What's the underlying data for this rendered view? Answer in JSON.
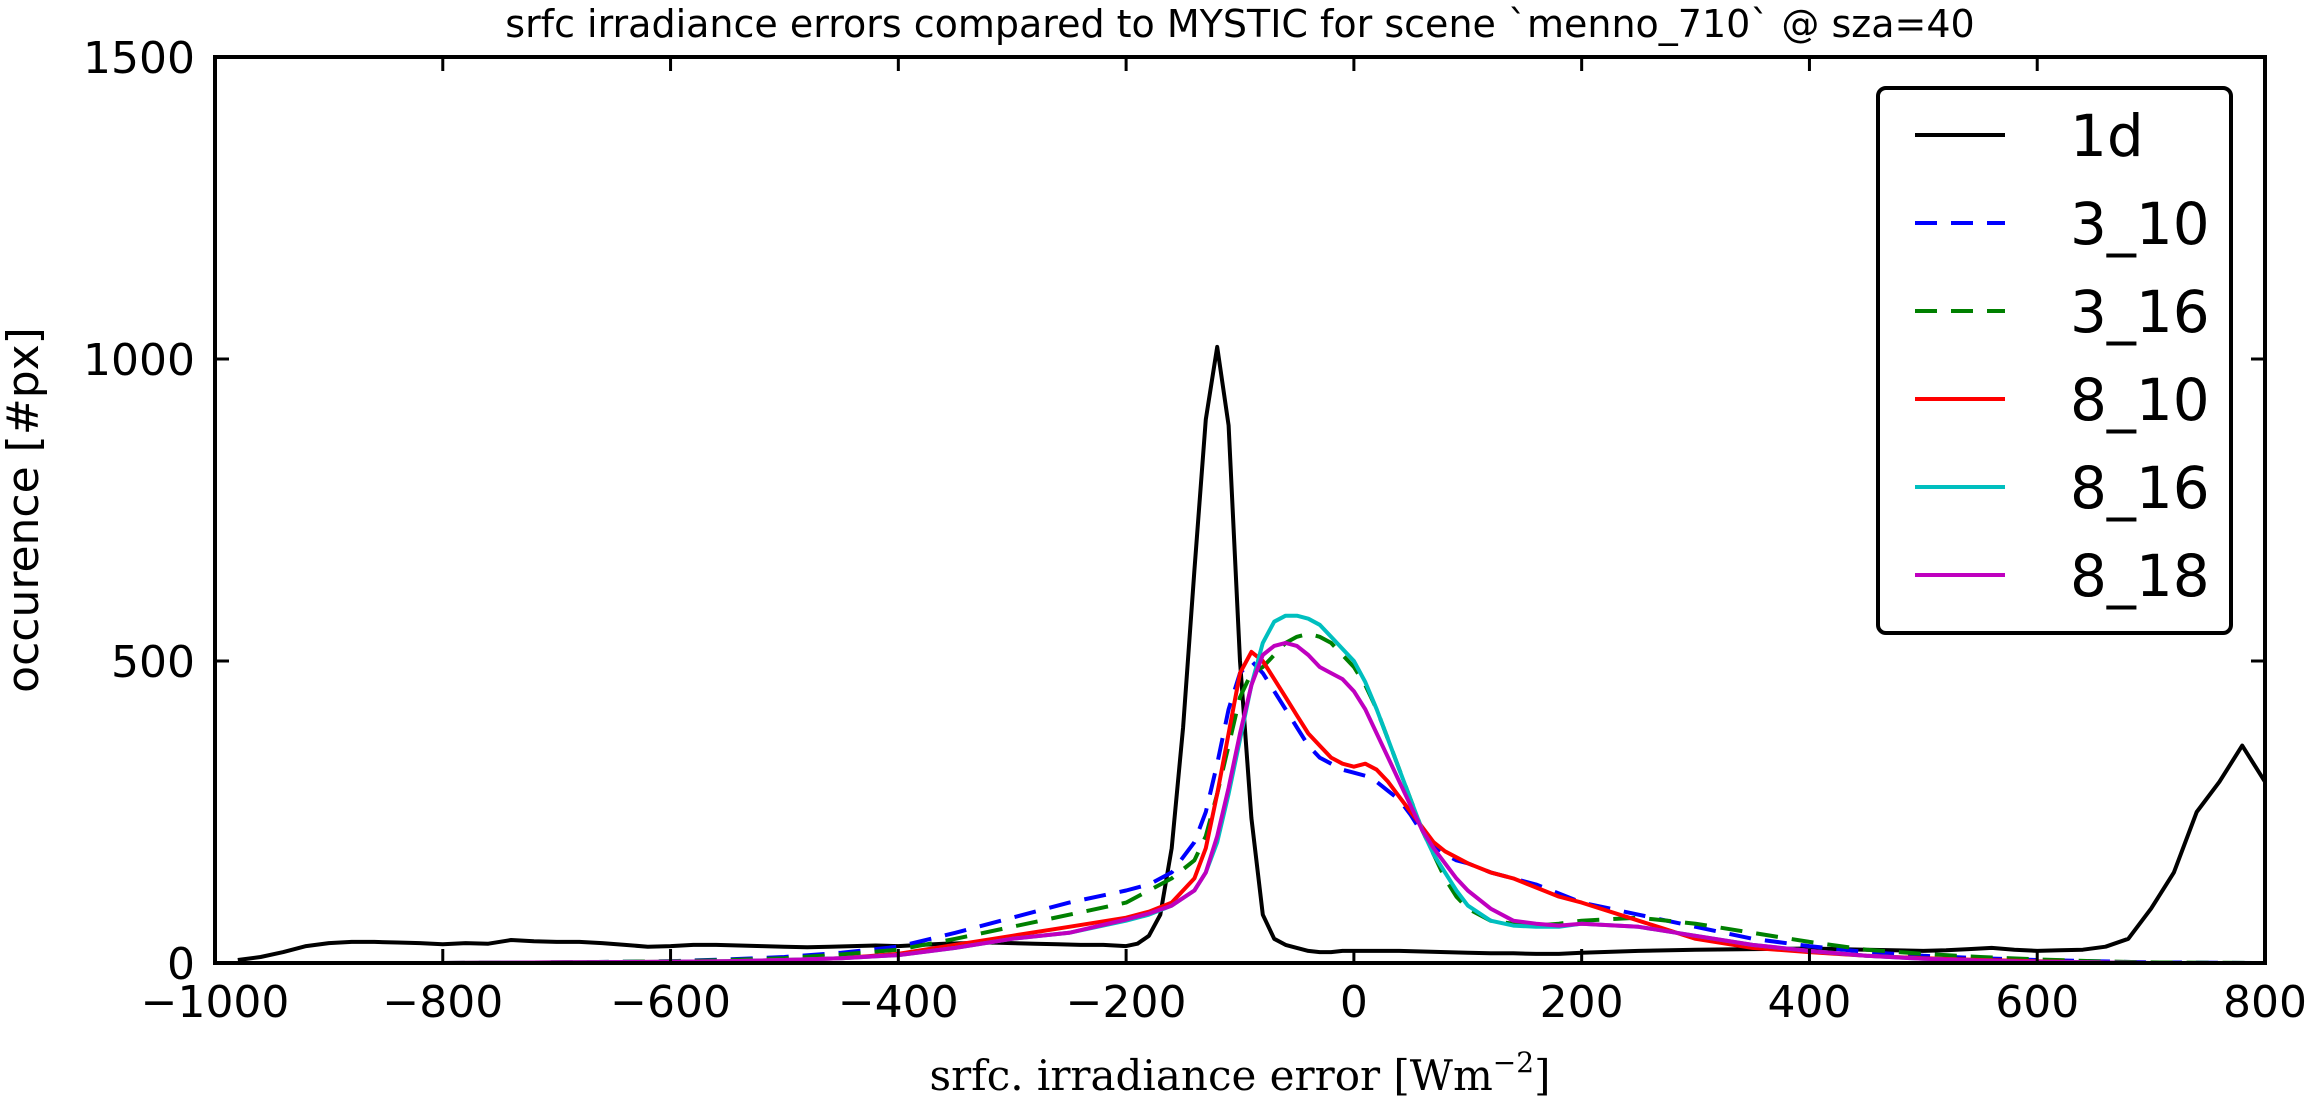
{
  "chart_data": {
    "type": "line",
    "title": "srfc irradiance errors compared to MYSTIC for scene `menno_710` @ sza=40",
    "xlabel": "srfc. irradiance error [Wm",
    "xlabel_exp": "−2",
    "xlabel_close": "]",
    "ylabel": "occurence [#px]",
    "xlim": [
      -1000,
      800
    ],
    "ylim": [
      0,
      1500
    ],
    "x_ticks": [
      -1000,
      -800,
      -600,
      -400,
      -200,
      0,
      200,
      400,
      600,
      800
    ],
    "x_tick_labels": [
      "−1000",
      "−800",
      "−600",
      "−400",
      "−200",
      "0",
      "200",
      "400",
      "600",
      "800"
    ],
    "y_ticks": [
      0,
      500,
      1000,
      1500
    ],
    "y_tick_labels": [
      "0",
      "500",
      "1000",
      "1500"
    ],
    "grid": false,
    "legend_position": "top-right",
    "series": [
      {
        "name": "1d",
        "color": "#000000",
        "dash": "solid",
        "x": [
          -980,
          -960,
          -940,
          -920,
          -900,
          -880,
          -860,
          -840,
          -820,
          -800,
          -780,
          -760,
          -740,
          -720,
          -700,
          -680,
          -660,
          -640,
          -620,
          -600,
          -580,
          -560,
          -540,
          -520,
          -500,
          -480,
          -460,
          -440,
          -420,
          -400,
          -380,
          -360,
          -340,
          -320,
          -300,
          -280,
          -260,
          -240,
          -220,
          -200,
          -190,
          -180,
          -170,
          -160,
          -150,
          -140,
          -130,
          -120,
          -110,
          -100,
          -90,
          -80,
          -70,
          -60,
          -50,
          -40,
          -30,
          -20,
          -10,
          0,
          20,
          40,
          60,
          80,
          100,
          120,
          140,
          160,
          180,
          200,
          250,
          300,
          350,
          400,
          450,
          500,
          520,
          540,
          560,
          580,
          600,
          620,
          640,
          660,
          680,
          700,
          720,
          740,
          760,
          780,
          800
        ],
        "y": [
          5,
          10,
          18,
          28,
          33,
          35,
          35,
          34,
          33,
          31,
          33,
          32,
          38,
          36,
          35,
          35,
          33,
          30,
          27,
          28,
          30,
          30,
          29,
          28,
          27,
          26,
          27,
          28,
          29,
          28,
          30,
          32,
          33,
          34,
          33,
          32,
          31,
          30,
          30,
          28,
          32,
          45,
          80,
          190,
          390,
          650,
          900,
          1020,
          890,
          500,
          240,
          80,
          40,
          30,
          25,
          20,
          18,
          18,
          20,
          20,
          20,
          20,
          19,
          18,
          17,
          16,
          16,
          15,
          15,
          17,
          20,
          22,
          23,
          24,
          22,
          20,
          21,
          23,
          25,
          22,
          20,
          21,
          22,
          27,
          40,
          90,
          150,
          250,
          300,
          360,
          300
        ]
      },
      {
        "name": "3_10",
        "color": "#0000ff",
        "dash": "dashed",
        "x": [
          -800,
          -700,
          -600,
          -550,
          -500,
          -450,
          -400,
          -350,
          -300,
          -250,
          -200,
          -180,
          -160,
          -140,
          -130,
          -120,
          -110,
          -100,
          -90,
          -80,
          -70,
          -60,
          -50,
          -40,
          -30,
          -20,
          -10,
          0,
          10,
          20,
          30,
          40,
          50,
          60,
          70,
          80,
          90,
          100,
          120,
          140,
          160,
          180,
          200,
          250,
          300,
          350,
          400,
          450,
          500,
          550,
          600,
          650,
          700,
          800
        ],
        "y": [
          0,
          1,
          3,
          6,
          10,
          17,
          27,
          50,
          75,
          100,
          120,
          130,
          150,
          200,
          250,
          330,
          420,
          480,
          500,
          480,
          450,
          420,
          390,
          360,
          340,
          330,
          320,
          315,
          310,
          300,
          285,
          270,
          245,
          215,
          195,
          180,
          170,
          165,
          150,
          140,
          130,
          115,
          100,
          80,
          60,
          40,
          28,
          18,
          12,
          8,
          5,
          3,
          1,
          0
        ]
      },
      {
        "name": "3_16",
        "color": "#008000",
        "dash": "dashed",
        "x": [
          -800,
          -700,
          -600,
          -550,
          -500,
          -450,
          -400,
          -350,
          -300,
          -250,
          -200,
          -180,
          -160,
          -140,
          -130,
          -120,
          -110,
          -100,
          -90,
          -80,
          -70,
          -60,
          -50,
          -40,
          -30,
          -20,
          -10,
          0,
          10,
          20,
          30,
          40,
          50,
          60,
          70,
          80,
          90,
          100,
          120,
          140,
          160,
          180,
          200,
          250,
          300,
          350,
          400,
          450,
          500,
          550,
          600,
          650,
          700,
          800
        ],
        "y": [
          0,
          1,
          3,
          5,
          8,
          14,
          22,
          40,
          60,
          80,
          100,
          120,
          140,
          170,
          210,
          280,
          360,
          440,
          480,
          490,
          510,
          530,
          540,
          545,
          540,
          530,
          510,
          490,
          460,
          420,
          370,
          320,
          270,
          220,
          180,
          140,
          110,
          90,
          70,
          65,
          62,
          65,
          70,
          75,
          65,
          50,
          35,
          22,
          15,
          10,
          6,
          3,
          1,
          0
        ]
      },
      {
        "name": "8_10",
        "color": "#ff0000",
        "dash": "solid",
        "x": [
          -800,
          -700,
          -600,
          -550,
          -500,
          -450,
          -400,
          -350,
          -300,
          -250,
          -200,
          -180,
          -160,
          -140,
          -130,
          -120,
          -110,
          -100,
          -90,
          -80,
          -70,
          -60,
          -50,
          -40,
          -30,
          -20,
          -10,
          0,
          10,
          20,
          30,
          40,
          50,
          60,
          70,
          80,
          90,
          100,
          120,
          140,
          160,
          180,
          200,
          250,
          300,
          350,
          400,
          450,
          500,
          550,
          600,
          650,
          700,
          800
        ],
        "y": [
          0,
          1,
          2,
          3,
          5,
          8,
          15,
          30,
          45,
          60,
          75,
          85,
          100,
          140,
          190,
          280,
          380,
          480,
          515,
          500,
          470,
          440,
          410,
          380,
          360,
          340,
          330,
          325,
          330,
          320,
          300,
          275,
          250,
          225,
          200,
          185,
          175,
          165,
          150,
          140,
          125,
          110,
          100,
          70,
          40,
          25,
          18,
          12,
          8,
          5,
          3,
          1,
          0,
          0
        ]
      },
      {
        "name": "8_16",
        "color": "#00bfbf",
        "dash": "solid",
        "x": [
          -800,
          -700,
          -600,
          -550,
          -500,
          -450,
          -400,
          -350,
          -300,
          -250,
          -200,
          -180,
          -160,
          -140,
          -130,
          -120,
          -110,
          -100,
          -90,
          -80,
          -70,
          -60,
          -50,
          -40,
          -30,
          -20,
          -10,
          0,
          10,
          20,
          30,
          40,
          50,
          60,
          70,
          80,
          90,
          100,
          120,
          140,
          160,
          180,
          200,
          250,
          300,
          350,
          400,
          450,
          500,
          550,
          600,
          650,
          700,
          800
        ],
        "y": [
          0,
          1,
          2,
          3,
          5,
          8,
          13,
          25,
          40,
          50,
          70,
          80,
          95,
          120,
          150,
          200,
          280,
          370,
          460,
          530,
          565,
          575,
          575,
          570,
          560,
          540,
          520,
          500,
          465,
          420,
          370,
          320,
          270,
          220,
          180,
          150,
          120,
          95,
          70,
          62,
          60,
          60,
          65,
          60,
          45,
          30,
          20,
          12,
          7,
          4,
          2,
          1,
          0,
          0
        ]
      },
      {
        "name": "8_18",
        "color": "#bf00bf",
        "dash": "solid",
        "x": [
          -800,
          -700,
          -600,
          -550,
          -500,
          -450,
          -400,
          -350,
          -300,
          -250,
          -200,
          -180,
          -160,
          -140,
          -130,
          -120,
          -110,
          -100,
          -90,
          -80,
          -70,
          -60,
          -50,
          -40,
          -30,
          -20,
          -10,
          0,
          10,
          20,
          30,
          40,
          50,
          60,
          70,
          80,
          90,
          100,
          120,
          140,
          160,
          180,
          200,
          250,
          300,
          350,
          400,
          450,
          500,
          550,
          600,
          650,
          700,
          800
        ],
        "y": [
          0,
          1,
          2,
          3,
          5,
          8,
          13,
          25,
          40,
          50,
          72,
          82,
          95,
          120,
          150,
          210,
          290,
          380,
          460,
          510,
          525,
          530,
          525,
          510,
          490,
          480,
          470,
          450,
          420,
          380,
          340,
          300,
          260,
          220,
          190,
          165,
          140,
          120,
          90,
          70,
          65,
          62,
          65,
          60,
          45,
          30,
          20,
          12,
          7,
          4,
          2,
          1,
          0,
          0
        ]
      }
    ]
  }
}
